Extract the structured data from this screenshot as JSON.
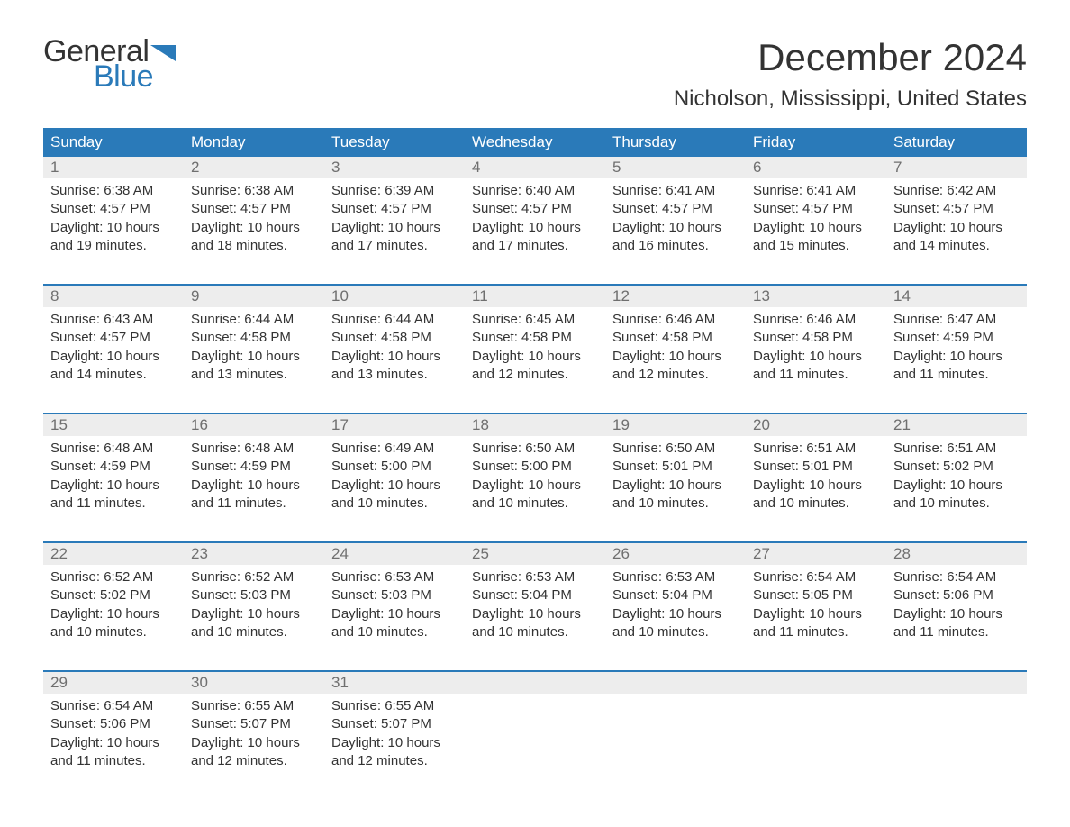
{
  "logo": {
    "line1": "General",
    "line2": "Blue",
    "flag_color": "#2a7ab9"
  },
  "title": "December 2024",
  "location": "Nicholson, Mississippi, United States",
  "colors": {
    "header_bg": "#2a7ab9",
    "header_text": "#ffffff",
    "daynum_bg": "#ededed",
    "daynum_text": "#6f6f6f",
    "body_text": "#333333",
    "week_divider": "#2a7ab9",
    "page_bg": "#ffffff"
  },
  "typography": {
    "title_fontsize": 42,
    "location_fontsize": 24,
    "weekday_fontsize": 17,
    "daynum_fontsize": 17,
    "cell_fontsize": 15
  },
  "weekdays": [
    "Sunday",
    "Monday",
    "Tuesday",
    "Wednesday",
    "Thursday",
    "Friday",
    "Saturday"
  ],
  "weeks": [
    [
      {
        "num": "1",
        "sunrise": "Sunrise: 6:38 AM",
        "sunset": "Sunset: 4:57 PM",
        "day1": "Daylight: 10 hours",
        "day2": "and 19 minutes."
      },
      {
        "num": "2",
        "sunrise": "Sunrise: 6:38 AM",
        "sunset": "Sunset: 4:57 PM",
        "day1": "Daylight: 10 hours",
        "day2": "and 18 minutes."
      },
      {
        "num": "3",
        "sunrise": "Sunrise: 6:39 AM",
        "sunset": "Sunset: 4:57 PM",
        "day1": "Daylight: 10 hours",
        "day2": "and 17 minutes."
      },
      {
        "num": "4",
        "sunrise": "Sunrise: 6:40 AM",
        "sunset": "Sunset: 4:57 PM",
        "day1": "Daylight: 10 hours",
        "day2": "and 17 minutes."
      },
      {
        "num": "5",
        "sunrise": "Sunrise: 6:41 AM",
        "sunset": "Sunset: 4:57 PM",
        "day1": "Daylight: 10 hours",
        "day2": "and 16 minutes."
      },
      {
        "num": "6",
        "sunrise": "Sunrise: 6:41 AM",
        "sunset": "Sunset: 4:57 PM",
        "day1": "Daylight: 10 hours",
        "day2": "and 15 minutes."
      },
      {
        "num": "7",
        "sunrise": "Sunrise: 6:42 AM",
        "sunset": "Sunset: 4:57 PM",
        "day1": "Daylight: 10 hours",
        "day2": "and 14 minutes."
      }
    ],
    [
      {
        "num": "8",
        "sunrise": "Sunrise: 6:43 AM",
        "sunset": "Sunset: 4:57 PM",
        "day1": "Daylight: 10 hours",
        "day2": "and 14 minutes."
      },
      {
        "num": "9",
        "sunrise": "Sunrise: 6:44 AM",
        "sunset": "Sunset: 4:58 PM",
        "day1": "Daylight: 10 hours",
        "day2": "and 13 minutes."
      },
      {
        "num": "10",
        "sunrise": "Sunrise: 6:44 AM",
        "sunset": "Sunset: 4:58 PM",
        "day1": "Daylight: 10 hours",
        "day2": "and 13 minutes."
      },
      {
        "num": "11",
        "sunrise": "Sunrise: 6:45 AM",
        "sunset": "Sunset: 4:58 PM",
        "day1": "Daylight: 10 hours",
        "day2": "and 12 minutes."
      },
      {
        "num": "12",
        "sunrise": "Sunrise: 6:46 AM",
        "sunset": "Sunset: 4:58 PM",
        "day1": "Daylight: 10 hours",
        "day2": "and 12 minutes."
      },
      {
        "num": "13",
        "sunrise": "Sunrise: 6:46 AM",
        "sunset": "Sunset: 4:58 PM",
        "day1": "Daylight: 10 hours",
        "day2": "and 11 minutes."
      },
      {
        "num": "14",
        "sunrise": "Sunrise: 6:47 AM",
        "sunset": "Sunset: 4:59 PM",
        "day1": "Daylight: 10 hours",
        "day2": "and 11 minutes."
      }
    ],
    [
      {
        "num": "15",
        "sunrise": "Sunrise: 6:48 AM",
        "sunset": "Sunset: 4:59 PM",
        "day1": "Daylight: 10 hours",
        "day2": "and 11 minutes."
      },
      {
        "num": "16",
        "sunrise": "Sunrise: 6:48 AM",
        "sunset": "Sunset: 4:59 PM",
        "day1": "Daylight: 10 hours",
        "day2": "and 11 minutes."
      },
      {
        "num": "17",
        "sunrise": "Sunrise: 6:49 AM",
        "sunset": "Sunset: 5:00 PM",
        "day1": "Daylight: 10 hours",
        "day2": "and 10 minutes."
      },
      {
        "num": "18",
        "sunrise": "Sunrise: 6:50 AM",
        "sunset": "Sunset: 5:00 PM",
        "day1": "Daylight: 10 hours",
        "day2": "and 10 minutes."
      },
      {
        "num": "19",
        "sunrise": "Sunrise: 6:50 AM",
        "sunset": "Sunset: 5:01 PM",
        "day1": "Daylight: 10 hours",
        "day2": "and 10 minutes."
      },
      {
        "num": "20",
        "sunrise": "Sunrise: 6:51 AM",
        "sunset": "Sunset: 5:01 PM",
        "day1": "Daylight: 10 hours",
        "day2": "and 10 minutes."
      },
      {
        "num": "21",
        "sunrise": "Sunrise: 6:51 AM",
        "sunset": "Sunset: 5:02 PM",
        "day1": "Daylight: 10 hours",
        "day2": "and 10 minutes."
      }
    ],
    [
      {
        "num": "22",
        "sunrise": "Sunrise: 6:52 AM",
        "sunset": "Sunset: 5:02 PM",
        "day1": "Daylight: 10 hours",
        "day2": "and 10 minutes."
      },
      {
        "num": "23",
        "sunrise": "Sunrise: 6:52 AM",
        "sunset": "Sunset: 5:03 PM",
        "day1": "Daylight: 10 hours",
        "day2": "and 10 minutes."
      },
      {
        "num": "24",
        "sunrise": "Sunrise: 6:53 AM",
        "sunset": "Sunset: 5:03 PM",
        "day1": "Daylight: 10 hours",
        "day2": "and 10 minutes."
      },
      {
        "num": "25",
        "sunrise": "Sunrise: 6:53 AM",
        "sunset": "Sunset: 5:04 PM",
        "day1": "Daylight: 10 hours",
        "day2": "and 10 minutes."
      },
      {
        "num": "26",
        "sunrise": "Sunrise: 6:53 AM",
        "sunset": "Sunset: 5:04 PM",
        "day1": "Daylight: 10 hours",
        "day2": "and 10 minutes."
      },
      {
        "num": "27",
        "sunrise": "Sunrise: 6:54 AM",
        "sunset": "Sunset: 5:05 PM",
        "day1": "Daylight: 10 hours",
        "day2": "and 11 minutes."
      },
      {
        "num": "28",
        "sunrise": "Sunrise: 6:54 AM",
        "sunset": "Sunset: 5:06 PM",
        "day1": "Daylight: 10 hours",
        "day2": "and 11 minutes."
      }
    ],
    [
      {
        "num": "29",
        "sunrise": "Sunrise: 6:54 AM",
        "sunset": "Sunset: 5:06 PM",
        "day1": "Daylight: 10 hours",
        "day2": "and 11 minutes."
      },
      {
        "num": "30",
        "sunrise": "Sunrise: 6:55 AM",
        "sunset": "Sunset: 5:07 PM",
        "day1": "Daylight: 10 hours",
        "day2": "and 12 minutes."
      },
      {
        "num": "31",
        "sunrise": "Sunrise: 6:55 AM",
        "sunset": "Sunset: 5:07 PM",
        "day1": "Daylight: 10 hours",
        "day2": "and 12 minutes."
      },
      null,
      null,
      null,
      null
    ]
  ]
}
